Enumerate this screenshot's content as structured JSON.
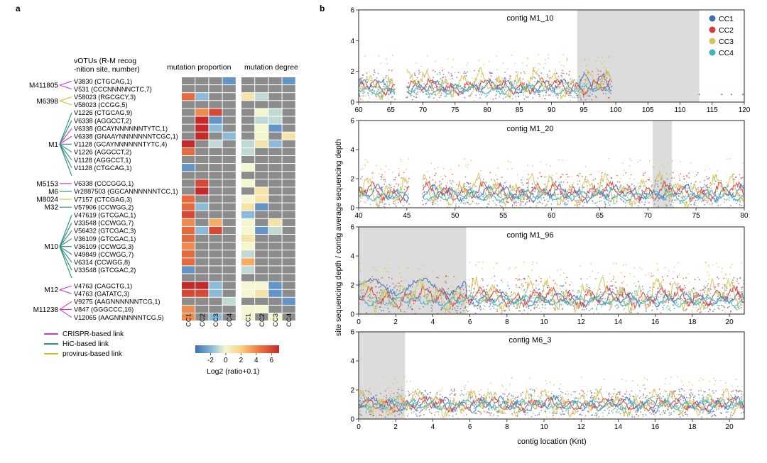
{
  "panel_a": {
    "label": "a",
    "header_line1": "vOTUs (R-M recog",
    "header_line2": "-nition site, number)",
    "heatmap_titles": [
      "mutation proportion",
      "mutation degree"
    ],
    "columns": [
      "CC1",
      "CC2",
      "CC3",
      "CC4"
    ],
    "groups": [
      {
        "name": "M411805",
        "start": 0,
        "end": 1
      },
      {
        "name": "M6398",
        "start": 2,
        "end": 3
      },
      {
        "name": "M1",
        "start": 4,
        "end": 12
      },
      {
        "name": "M5153",
        "start": 13,
        "end": 13
      },
      {
        "name": "M6",
        "start": 14,
        "end": 14
      },
      {
        "name": "M8024",
        "start": 15,
        "end": 15
      },
      {
        "name": "M32",
        "start": 16,
        "end": 16
      },
      {
        "name": "M10",
        "start": 17,
        "end": 25
      },
      {
        "name": "M12",
        "start": 26,
        "end": 27
      },
      {
        "name": "M11238",
        "start": 28,
        "end": 30
      }
    ],
    "rows": [
      {
        "label": "V3830 (CTGCAG,1)",
        "link": "crispr",
        "prop": [
          null,
          null,
          null,
          -3
        ],
        "deg": [
          null,
          null,
          null,
          -3
        ]
      },
      {
        "label": "V531 (CCCNNNNNCTC,7)",
        "link": "crispr",
        "prop": [
          null,
          null,
          null,
          null
        ],
        "deg": [
          null,
          null,
          null,
          null
        ]
      },
      {
        "label": "V58023 (RGCGCY,3)",
        "link": "provirus",
        "prop": [
          5,
          -2,
          null,
          null
        ],
        "deg": [
          1,
          -1,
          null,
          null
        ]
      },
      {
        "label": "V58023 (CCGG,5)",
        "link": "provirus",
        "prop": [
          null,
          null,
          null,
          null
        ],
        "deg": [
          null,
          null,
          null,
          null
        ]
      },
      {
        "label": "V1226 (CTGCAG,9)",
        "link": "hic",
        "prop": [
          null,
          4,
          6,
          null
        ],
        "deg": [
          null,
          0,
          -1,
          null
        ]
      },
      {
        "label": "V6338 (AGGCCT,2)",
        "link": "hic",
        "prop": [
          null,
          7,
          -3,
          null
        ],
        "deg": [
          null,
          -1,
          -1,
          null
        ]
      },
      {
        "label": "V6338 (GCAYNNNNNNTYTC,1)",
        "link": "crispr",
        "prop": [
          null,
          7,
          -2,
          null
        ],
        "deg": [
          null,
          0,
          -3,
          null
        ]
      },
      {
        "label": "V6338 (GNAAYNNNNNNNTCGC,1)",
        "link": "crispr",
        "prop": [
          null,
          7,
          null,
          -2
        ],
        "deg": [
          null,
          0,
          null,
          1
        ]
      },
      {
        "label": "V1128 (GCAYNNNNNNTYTC,4)",
        "link": "hic",
        "prop": [
          7,
          null,
          -1,
          null
        ],
        "deg": [
          -1,
          1,
          -2,
          null
        ]
      },
      {
        "label": "V1226 (AGGCCT,2)",
        "link": "hic",
        "prop": [
          5,
          null,
          null,
          null
        ],
        "deg": [
          -1,
          null,
          null,
          null
        ]
      },
      {
        "label": "V1128 (AGGCCT,1)",
        "link": "hic",
        "prop": [
          null,
          null,
          null,
          null
        ],
        "deg": [
          null,
          null,
          null,
          null
        ]
      },
      {
        "label": "V1128 (CTGCAG,1)",
        "link": "hic",
        "prop": [
          -3,
          null,
          null,
          null
        ],
        "deg": [
          0,
          null,
          null,
          null
        ]
      },
      {
        "label": "",
        "link": "hic",
        "prop": [
          null,
          null,
          null,
          null
        ],
        "deg": [
          null,
          null,
          null,
          null
        ]
      },
      {
        "label": "V6338 (CCCGGG,1)",
        "link": "crispr",
        "prop": [
          null,
          6,
          null,
          null
        ],
        "deg": [
          0,
          null,
          null,
          null
        ]
      },
      {
        "label": "Vr2887503 (GGCANNNNNNTCC,1)",
        "link": "hic",
        "prop": [
          null,
          7,
          null,
          null
        ],
        "deg": [
          null,
          1,
          null,
          null
        ]
      },
      {
        "label": "V7157 (CTCGAG,3)",
        "link": "provirus",
        "prop": [
          5,
          null,
          null,
          null
        ],
        "deg": [
          0,
          1,
          null,
          null
        ]
      },
      {
        "label": "V57906 (CCWGG,2)",
        "link": "hic",
        "prop": [
          5,
          -2,
          null,
          null
        ],
        "deg": [
          1,
          -3,
          null,
          null
        ]
      },
      {
        "label": "V47619 (GTCGAC,1)",
        "link": "hic",
        "prop": [
          6,
          null,
          null,
          null
        ],
        "deg": [
          -2,
          null,
          null,
          null
        ]
      },
      {
        "label": "V33548 (CCWGG,7)",
        "link": "hic",
        "prop": [
          4,
          null,
          3,
          null
        ],
        "deg": [
          0,
          null,
          1,
          null
        ]
      },
      {
        "label": "V56432 (GTCGAC,3)",
        "link": "hic",
        "prop": [
          5,
          -2,
          6,
          null
        ],
        "deg": [
          0,
          -3,
          -1,
          null
        ]
      },
      {
        "label": "V36109 (GTCGAC,1)",
        "link": "hic",
        "prop": [
          5,
          null,
          null,
          null
        ],
        "deg": [
          1,
          null,
          null,
          null
        ]
      },
      {
        "label": "V36109 (CCWGG,3)",
        "link": "hic",
        "prop": [
          4,
          null,
          null,
          null
        ],
        "deg": [
          0,
          null,
          null,
          null
        ]
      },
      {
        "label": "V49849 (CCWGG,7)",
        "link": "hic",
        "prop": [
          5,
          null,
          null,
          null
        ],
        "deg": [
          -1,
          null,
          null,
          null
        ]
      },
      {
        "label": "V6314 (CCWGG,8)",
        "link": "hic",
        "prop": [
          5,
          null,
          null,
          null
        ],
        "deg": [
          3,
          null,
          null,
          null
        ]
      },
      {
        "label": "V33548 (GTCGAC,2)",
        "link": "hic",
        "prop": [
          -3,
          null,
          null,
          null
        ],
        "deg": [
          -1,
          null,
          null,
          null
        ]
      },
      {
        "label": "",
        "link": "hic",
        "prop": [
          null,
          null,
          null,
          null
        ],
        "deg": [
          null,
          null,
          null,
          null
        ]
      },
      {
        "label": "V4763 (CAGCTG,1)",
        "link": "crispr",
        "prop": [
          7,
          7,
          -2,
          null
        ],
        "deg": [
          0,
          0,
          -3,
          null
        ]
      },
      {
        "label": "V4763 (GATATC,3)",
        "link": "crispr",
        "prop": [
          6,
          6,
          -2,
          null
        ],
        "deg": [
          0,
          1,
          -3,
          null
        ]
      },
      {
        "label": "V9275 (AAGNNNNNNTCG,1)",
        "link": "crispr",
        "prop": [
          null,
          null,
          null,
          -1
        ],
        "deg": [
          null,
          null,
          null,
          -3
        ]
      },
      {
        "label": "V847 (GGGCCC,16)",
        "link": "crispr",
        "prop": [
          4,
          null,
          null,
          null
        ],
        "deg": [
          0,
          0,
          null,
          null
        ]
      },
      {
        "label": "V12065 (AAGNNNNNNTCG,5)",
        "link": "crispr",
        "prop": [
          4,
          null,
          -2,
          null
        ],
        "deg": [
          0,
          null,
          0,
          null
        ]
      }
    ],
    "legend": {
      "crispr": "CRISPR-based link",
      "hic": "HiC-based link",
      "provirus": "provirus-based link"
    },
    "colors": {
      "crispr": "#c83ccd",
      "hic": "#2a8f80",
      "provirus": "#cdbf3a",
      "na": "#8c8c8c"
    },
    "colorbar": {
      "ticks": [
        "-2",
        "0",
        "2",
        "4",
        "6"
      ],
      "min": -4,
      "max": 7,
      "label": "Log2 (ratio+0.1)"
    }
  },
  "panel_b": {
    "label": "b",
    "ylabel": "site sequencing depth / contig average sequencing depth",
    "xlabel": "contig location (Knt)",
    "legend": [
      {
        "name": "CC1",
        "color": "#3f6fb0"
      },
      {
        "name": "CC2",
        "color": "#d93a3a"
      },
      {
        "name": "CC3",
        "color": "#d4c25a"
      },
      {
        "name": "CC4",
        "color": "#3fb3c4"
      }
    ]
  },
  "chart_data": [
    {
      "type": "line",
      "title": "contig M1_10",
      "xlim": [
        60,
        120
      ],
      "ylim": [
        0,
        6
      ],
      "xticks": [
        "60",
        "65",
        "70",
        "75",
        "80",
        "85",
        "90",
        "95",
        "100",
        "105",
        "110",
        "115",
        "120"
      ],
      "yticks": [
        "0",
        "2",
        "4",
        "6"
      ],
      "shaded": [
        [
          94,
          113
        ]
      ],
      "gaps": [
        [
          65.8,
          67.4
        ],
        [
          99.5,
          120
        ]
      ],
      "series": [
        {
          "name": "CC1",
          "mean": 1.0,
          "amp": 0.8,
          "extra": [
            [
              94.5,
              99.5,
              1.3
            ]
          ]
        },
        {
          "name": "CC2",
          "mean": 1.0,
          "amp": 0.9
        },
        {
          "name": "CC3",
          "mean": 1.2,
          "amp": 1.6
        },
        {
          "name": "CC4",
          "mean": 0.8,
          "amp": 0.5
        }
      ],
      "sparse_points": [
        113,
        116.5,
        118,
        119.8
      ]
    },
    {
      "type": "line",
      "title": "contig M1_20",
      "xlim": [
        40,
        80
      ],
      "ylim": [
        0,
        6
      ],
      "xticks": [
        "40",
        "45",
        "50",
        "55",
        "60",
        "65",
        "70",
        "75",
        "80"
      ],
      "yticks": [
        "0",
        "2",
        "4",
        "6"
      ],
      "shaded": [
        [
          70.5,
          72.5
        ]
      ],
      "gaps": [
        [
          45.3,
          46.6
        ]
      ],
      "series": [
        {
          "name": "CC1",
          "mean": 1.0,
          "amp": 0.9
        },
        {
          "name": "CC2",
          "mean": 1.1,
          "amp": 1.1
        },
        {
          "name": "CC3",
          "mean": 1.2,
          "amp": 1.8
        },
        {
          "name": "CC4",
          "mean": 0.8,
          "amp": 0.6
        }
      ]
    },
    {
      "type": "line",
      "title": "contig M1_96",
      "xlim": [
        0,
        20.8
      ],
      "ylim": [
        0,
        6
      ],
      "xticks": [
        "0",
        "2",
        "4",
        "6",
        "8",
        "10",
        "12",
        "14",
        "16",
        "18",
        "20"
      ],
      "yticks": [
        "0",
        "2",
        "4",
        "6"
      ],
      "shaded": [
        [
          0,
          5.8
        ]
      ],
      "gaps": [],
      "series": [
        {
          "name": "CC1",
          "mean": 1.0,
          "amp": 0.8,
          "extra": [
            [
              0,
              5.8,
              1.9
            ]
          ]
        },
        {
          "name": "CC2",
          "mean": 1.2,
          "amp": 1.2
        },
        {
          "name": "CC3",
          "mean": 1.3,
          "amp": 1.9
        },
        {
          "name": "CC4",
          "mean": 0.9,
          "amp": 0.6
        }
      ]
    },
    {
      "type": "line",
      "title": "contig M6_3",
      "xlim": [
        0,
        20.8
      ],
      "ylim": [
        0,
        6
      ],
      "xticks": [
        "0",
        "2",
        "4",
        "6",
        "8",
        "10",
        "12",
        "14",
        "16",
        "18",
        "20"
      ],
      "yticks": [
        "0",
        "2",
        "4",
        "6"
      ],
      "shaded": [
        [
          0,
          2.5
        ]
      ],
      "gaps": [],
      "series": [
        {
          "name": "CC1",
          "mean": 1.0,
          "amp": 0.9
        },
        {
          "name": "CC2",
          "mean": 1.0,
          "amp": 0.8
        },
        {
          "name": "CC3",
          "mean": 1.1,
          "amp": 1.5
        },
        {
          "name": "CC4",
          "mean": 1.0,
          "amp": 0.6
        }
      ]
    }
  ]
}
